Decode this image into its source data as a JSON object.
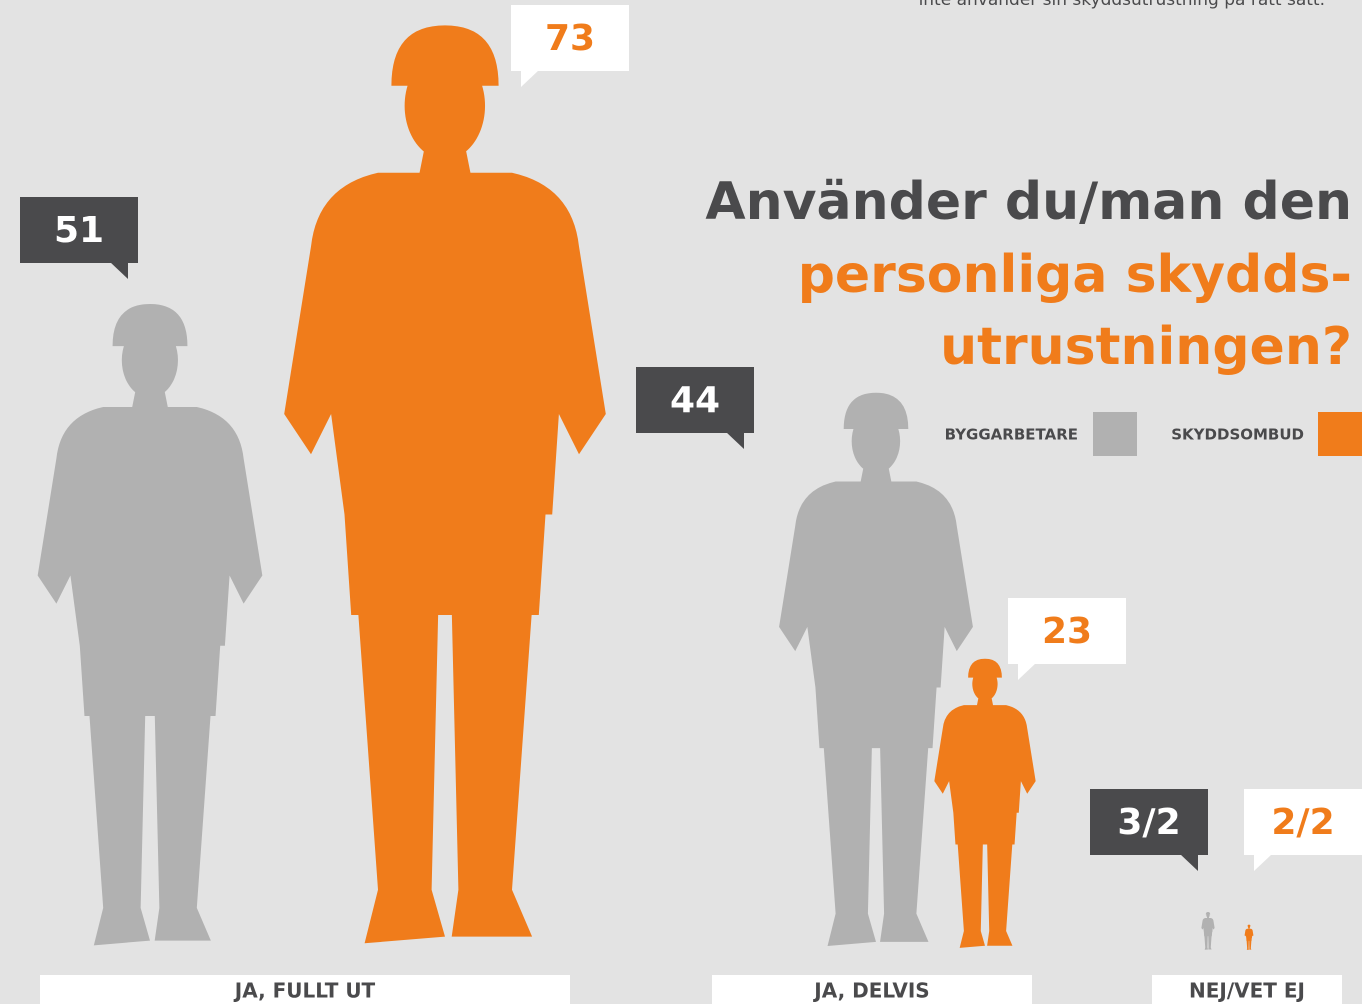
{
  "chart_data": {
    "type": "pictogram",
    "note": "inte använder sin skyddsutrustning på rätt sätt.",
    "title_lines": [
      "Använder du/man den",
      "personliga skydds-",
      "utrustningen?"
    ],
    "categories": [
      "JA, FULLT UT",
      "JA, DELVIS",
      "NEJ/VET EJ"
    ],
    "series": [
      {
        "name": "BYGGARBETARE",
        "color": "#b1b1b1",
        "values": [
          51,
          44,
          3
        ],
        "value_labels": [
          "51",
          "44",
          "3/2"
        ]
      },
      {
        "name": "SKYDDSOMBUD",
        "color": "#f07c1b",
        "values": [
          73,
          23,
          2
        ],
        "value_labels": [
          "73",
          "23",
          "2/2"
        ]
      }
    ],
    "ylim": [
      0,
      73
    ]
  }
}
